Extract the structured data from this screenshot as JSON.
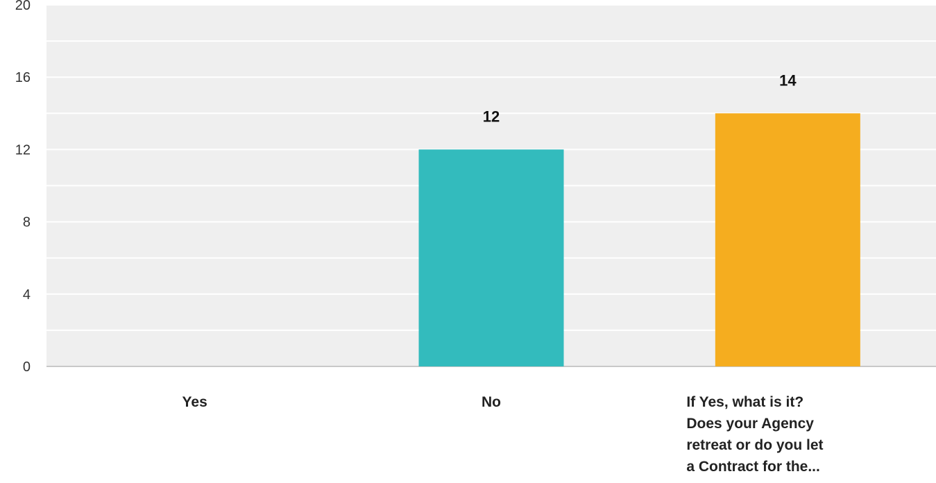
{
  "chart_data": {
    "type": "bar",
    "title": "",
    "xlabel": "",
    "ylabel": "",
    "categories": [
      [
        "Yes"
      ],
      [
        "No"
      ],
      [
        "If Yes, what is it?",
        "Does your Agency",
        "retreat or do you let",
        "a Contract for the..."
      ]
    ],
    "values": [
      0,
      12,
      14
    ],
    "data_labels": [
      "",
      "12",
      "14"
    ],
    "bar_colors": [
      "#33bbbd",
      "#33bbbd",
      "#f5ad1f"
    ],
    "ylim": [
      0,
      20
    ],
    "yticks": [
      "0",
      "4",
      "8",
      "12",
      "16",
      "20"
    ],
    "minor_gridlines": true,
    "plot_background": "#efefef",
    "gridline_color": "#ffffff"
  }
}
